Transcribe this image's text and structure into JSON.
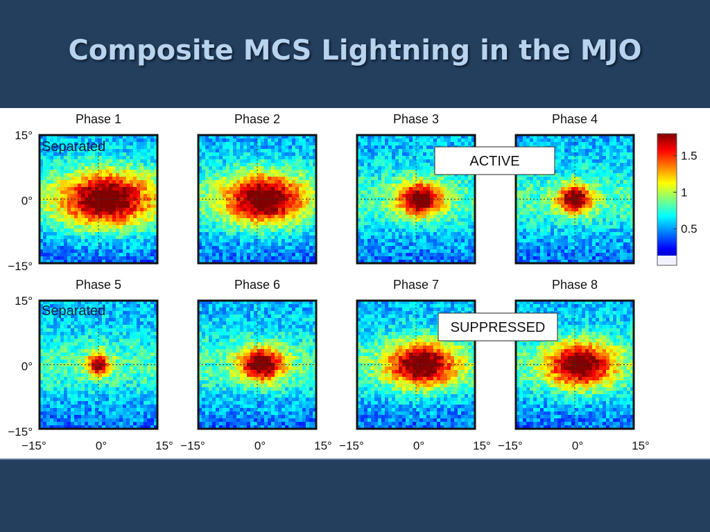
{
  "slide": {
    "title": "Composite MCS Lightning in the MJO"
  },
  "chart_data": {
    "type": "heatmap",
    "panels": [
      {
        "title": "Phase 1",
        "center": [
          0,
          0
        ],
        "peak": 1.8,
        "spread_deg": 8
      },
      {
        "title": "Phase 2",
        "center": [
          0,
          0
        ],
        "peak": 1.8,
        "spread_deg": 7
      },
      {
        "title": "Phase 3",
        "center": [
          0,
          0
        ],
        "peak": 1.8,
        "spread_deg": 4
      },
      {
        "title": "Phase 4",
        "center": [
          0,
          0
        ],
        "peak": 1.8,
        "spread_deg": 3
      },
      {
        "title": "Phase 5",
        "center": [
          0,
          0
        ],
        "peak": 1.7,
        "spread_deg": 2
      },
      {
        "title": "Phase 6",
        "center": [
          0,
          0
        ],
        "peak": 1.8,
        "spread_deg": 4
      },
      {
        "title": "Phase 7",
        "center": [
          0,
          0
        ],
        "peak": 1.8,
        "spread_deg": 6
      },
      {
        "title": "Phase 8",
        "center": [
          0,
          0
        ],
        "peak": 1.8,
        "spread_deg": 6
      }
    ],
    "x_ticks": [
      "−15°",
      "0°",
      "15°"
    ],
    "y_ticks": [
      "15°",
      "0°",
      "−15°"
    ],
    "xlim": [
      -15,
      15
    ],
    "ylim": [
      -15,
      15
    ],
    "colorbar": {
      "ticks": [
        0.5,
        1,
        1.5
      ],
      "tick_labels": [
        "0.5",
        "1",
        "1.5"
      ],
      "range": [
        0,
        1.8
      ],
      "colormap": "jet"
    },
    "annotations": [
      {
        "text": "Separated",
        "panel": "Phase 1"
      },
      {
        "text": "Separated",
        "panel": "Phase 5"
      },
      {
        "text": "ACTIVE",
        "row": "top"
      },
      {
        "text": "SUPPRESSED",
        "row": "bottom"
      }
    ],
    "grid": "dotted crosshair at 0°"
  }
}
